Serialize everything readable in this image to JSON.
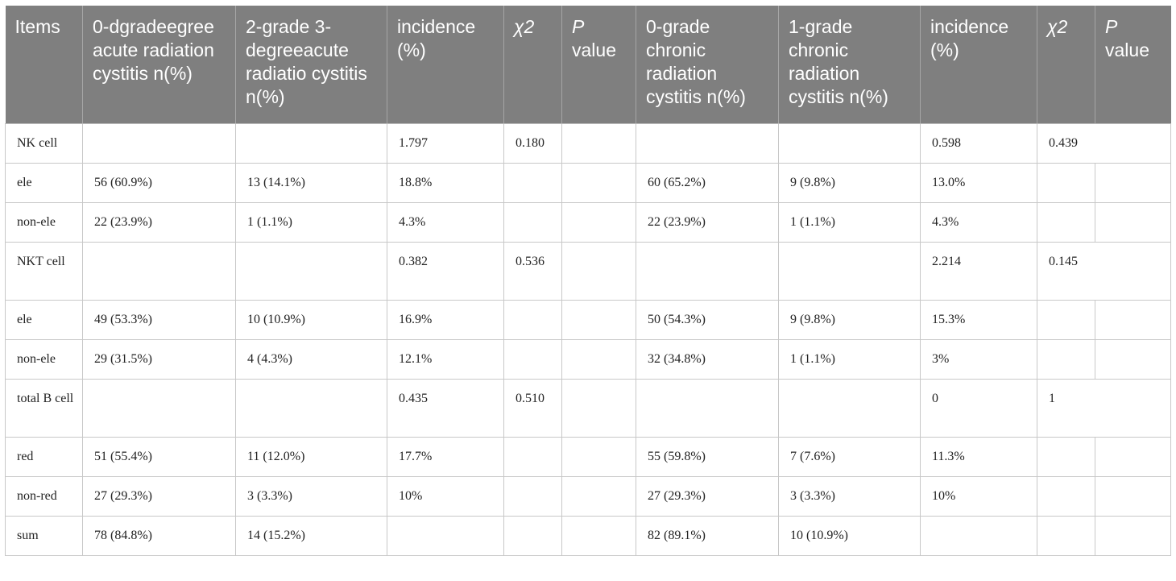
{
  "table": {
    "headers": [
      {
        "text": "Items",
        "italic": false
      },
      {
        "text": "0-dgradeegree acute radiation cystitis n(%)",
        "italic": false
      },
      {
        "text": "2-grade 3-degreeacute radiatio cystitis n(%)",
        "italic": false
      },
      {
        "text": "incidence (%)",
        "italic": false
      },
      {
        "text": "χ2",
        "italic": true
      },
      {
        "text": "P value",
        "italic": false,
        "italic_prefix": "P",
        "rest": " value"
      },
      {
        "text": "0-grade chronic radiation cystitis n(%)",
        "italic": false
      },
      {
        "text": "1-grade chronic radiation cystitis n(%)",
        "italic": false
      },
      {
        "text": "incidence (%)",
        "italic": false
      },
      {
        "text": "χ2",
        "italic": true
      },
      {
        "text": "P value",
        "italic": false,
        "italic_prefix": "P",
        "rest": " value"
      }
    ],
    "header_italic_p": "P",
    "header_value_word": " value",
    "rows": [
      {
        "cells": [
          "NK cell",
          "",
          "",
          "1.797",
          "0.180",
          "",
          "",
          "",
          "0.598",
          "0.439",
          ""
        ],
        "tall": false,
        "merged_last": true
      },
      {
        "cells": [
          "ele",
          "56 (60.9%)",
          "13 (14.1%)",
          "18.8%",
          "",
          "",
          "60 (65.2%)",
          "9 (9.8%)",
          "13.0%",
          "",
          ""
        ],
        "tall": false,
        "merged_last": false
      },
      {
        "cells": [
          "non-ele",
          "22 (23.9%)",
          "1 (1.1%)",
          "4.3%",
          "",
          "",
          "22 (23.9%)",
          "1 (1.1%)",
          "4.3%",
          "",
          ""
        ],
        "tall": false,
        "merged_last": false
      },
      {
        "cells": [
          "NKT cell",
          "",
          "",
          "0.382",
          "0.536",
          "",
          "",
          "",
          "2.214",
          "0.145",
          ""
        ],
        "tall": true,
        "merged_last": true
      },
      {
        "cells": [
          "ele",
          "49 (53.3%)",
          "10 (10.9%)",
          "16.9%",
          "",
          "",
          "50 (54.3%)",
          "9 (9.8%)",
          "15.3%",
          "",
          ""
        ],
        "tall": false,
        "merged_last": false
      },
      {
        "cells": [
          "non-ele",
          "29 (31.5%)",
          "4 (4.3%)",
          "12.1%",
          "",
          "",
          "32 (34.8%)",
          "1 (1.1%)",
          "3%",
          "",
          ""
        ],
        "tall": false,
        "merged_last": false
      },
      {
        "cells": [
          "total B cell",
          "",
          "",
          "0.435",
          "0.510",
          "",
          "",
          "",
          "0",
          "1",
          ""
        ],
        "tall": true,
        "merged_last": true
      },
      {
        "cells": [
          "red",
          "51 (55.4%)",
          "11 (12.0%)",
          "17.7%",
          "",
          "",
          "55 (59.8%)",
          "7 (7.6%)",
          "11.3%",
          "",
          ""
        ],
        "tall": false,
        "merged_last": false
      },
      {
        "cells": [
          "non-red",
          "27 (29.3%)",
          "3 (3.3%)",
          "10%",
          "",
          "",
          "27 (29.3%)",
          "3 (3.3%)",
          "10%",
          "",
          ""
        ],
        "tall": false,
        "merged_last": false
      },
      {
        "cells": [
          "sum",
          "78 (84.8%)",
          "14 (15.2%)",
          "",
          "",
          "",
          "82 (89.1%)",
          "10 (10.9%)",
          "",
          "",
          ""
        ],
        "tall": false,
        "merged_last": false
      }
    ]
  }
}
